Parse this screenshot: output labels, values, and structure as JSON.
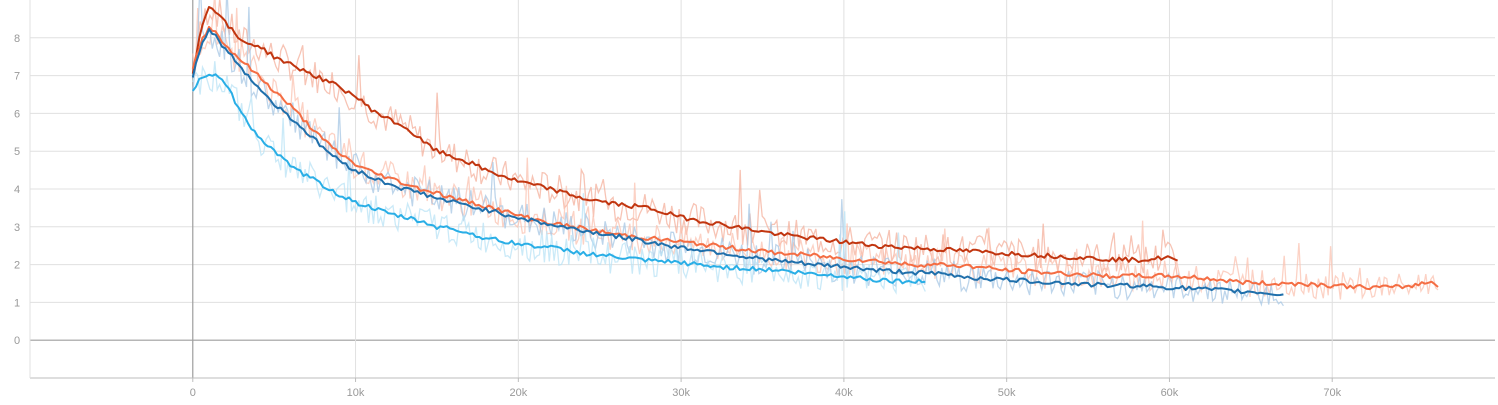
{
  "chart_data": {
    "type": "line",
    "title": "",
    "xlabel": "",
    "ylabel": "",
    "grid": true,
    "legend": "none",
    "xlim": [
      -10000,
      80000
    ],
    "ylim": [
      -1,
      9
    ],
    "x_ticks": [
      {
        "value": 0,
        "label": "0"
      },
      {
        "value": 10000,
        "label": "10k"
      },
      {
        "value": 20000,
        "label": "20k"
      },
      {
        "value": 30000,
        "label": "30k"
      },
      {
        "value": 40000,
        "label": "40k"
      },
      {
        "value": 50000,
        "label": "50k"
      },
      {
        "value": 60000,
        "label": "60k"
      },
      {
        "value": 70000,
        "label": "70k"
      }
    ],
    "y_ticks": [
      {
        "value": 0,
        "label": "0"
      },
      {
        "value": 1,
        "label": "1"
      },
      {
        "value": 2,
        "label": "2"
      },
      {
        "value": 3,
        "label": "3"
      },
      {
        "value": 4,
        "label": "4"
      },
      {
        "value": 5,
        "label": "5"
      },
      {
        "value": 6,
        "label": "6"
      },
      {
        "value": 7,
        "label": "7"
      },
      {
        "value": 8,
        "label": "8"
      }
    ],
    "series": [
      {
        "color": "#c1350f",
        "raw_color": "#f4b09c",
        "x": [
          0,
          500,
          1000,
          1500,
          2000,
          3000,
          4000,
          5000,
          6000,
          7000,
          8000,
          9000,
          10000,
          11000,
          12000,
          13000,
          14000,
          15000,
          16000,
          17000,
          18000,
          19000,
          20000,
          22000,
          24000,
          26000,
          28000,
          30000,
          32000,
          34000,
          36000,
          38000,
          40000,
          42000,
          44000,
          46000,
          48000,
          50000,
          52000,
          54000,
          56000,
          58000,
          59000,
          60000,
          60500
        ],
        "y": [
          7.1,
          8.2,
          8.85,
          8.7,
          8.4,
          7.9,
          7.8,
          7.5,
          7.3,
          7.1,
          6.9,
          6.7,
          6.45,
          6.1,
          5.85,
          5.65,
          5.3,
          5.0,
          4.85,
          4.7,
          4.5,
          4.35,
          4.2,
          4.0,
          3.75,
          3.6,
          3.5,
          3.25,
          3.1,
          2.95,
          2.8,
          2.7,
          2.6,
          2.5,
          2.45,
          2.4,
          2.35,
          2.3,
          2.25,
          2.2,
          2.15,
          2.12,
          2.15,
          2.2,
          2.05
        ]
      },
      {
        "color": "#f46d43",
        "raw_color": "#fbc3b1",
        "x": [
          0,
          500,
          1000,
          1500,
          2000,
          3000,
          4000,
          5000,
          6000,
          7000,
          8000,
          9000,
          10000,
          11000,
          12000,
          13000,
          14000,
          15000,
          16000,
          17000,
          18000,
          20000,
          22000,
          24000,
          26000,
          28000,
          30000,
          32000,
          34000,
          36000,
          38000,
          40000,
          42000,
          44000,
          46000,
          48000,
          50000,
          52000,
          54000,
          56000,
          58000,
          60000,
          62000,
          64000,
          66000,
          68000,
          70000,
          72000,
          74000,
          75000,
          76000,
          76500
        ],
        "y": [
          7.2,
          7.9,
          8.3,
          8.1,
          7.8,
          7.4,
          7.0,
          6.6,
          6.2,
          5.75,
          5.3,
          4.95,
          4.65,
          4.45,
          4.3,
          4.15,
          4.0,
          3.9,
          3.75,
          3.65,
          3.55,
          3.3,
          3.1,
          2.95,
          2.8,
          2.7,
          2.6,
          2.5,
          2.4,
          2.3,
          2.25,
          2.15,
          2.1,
          2.0,
          2.0,
          1.95,
          1.85,
          1.8,
          1.75,
          1.7,
          1.7,
          1.7,
          1.65,
          1.55,
          1.5,
          1.5,
          1.45,
          1.4,
          1.4,
          1.45,
          1.55,
          1.45
        ]
      },
      {
        "color": "#1f6fab",
        "raw_color": "#a7c7e4",
        "x": [
          0,
          500,
          1000,
          1500,
          2000,
          3000,
          4000,
          5000,
          6000,
          7000,
          8000,
          9000,
          10000,
          11000,
          12000,
          13000,
          14000,
          15000,
          16000,
          18000,
          20000,
          22000,
          24000,
          26000,
          28000,
          30000,
          32000,
          34000,
          36000,
          38000,
          40000,
          42000,
          44000,
          46000,
          48000,
          50000,
          52000,
          54000,
          56000,
          58000,
          60000,
          62000,
          64000,
          66000,
          67000
        ],
        "y": [
          7.0,
          7.8,
          8.2,
          8.0,
          7.7,
          7.2,
          6.7,
          6.25,
          5.9,
          5.5,
          5.1,
          4.75,
          4.5,
          4.3,
          4.15,
          4.0,
          3.9,
          3.75,
          3.65,
          3.45,
          3.25,
          3.05,
          2.9,
          2.75,
          2.6,
          2.45,
          2.35,
          2.2,
          2.1,
          2.0,
          1.95,
          1.85,
          1.8,
          1.75,
          1.65,
          1.6,
          1.55,
          1.5,
          1.45,
          1.45,
          1.4,
          1.35,
          1.3,
          1.25,
          1.2
        ]
      },
      {
        "color": "#29aee6",
        "raw_color": "#b9e3f6",
        "x": [
          0,
          500,
          1000,
          1500,
          2000,
          3000,
          4000,
          5000,
          6000,
          7000,
          8000,
          9000,
          10000,
          11000,
          12000,
          13000,
          14000,
          15000,
          16000,
          18000,
          20000,
          22000,
          24000,
          26000,
          28000,
          30000,
          32000,
          34000,
          36000,
          38000,
          40000,
          42000,
          44000,
          45000
        ],
        "y": [
          6.6,
          6.95,
          7.05,
          7.0,
          6.8,
          6.0,
          5.4,
          5.0,
          4.6,
          4.35,
          4.1,
          3.85,
          3.65,
          3.5,
          3.35,
          3.25,
          3.15,
          3.0,
          2.95,
          2.7,
          2.55,
          2.45,
          2.3,
          2.2,
          2.1,
          2.05,
          1.95,
          1.9,
          1.85,
          1.75,
          1.7,
          1.6,
          1.55,
          1.55
        ]
      }
    ]
  }
}
